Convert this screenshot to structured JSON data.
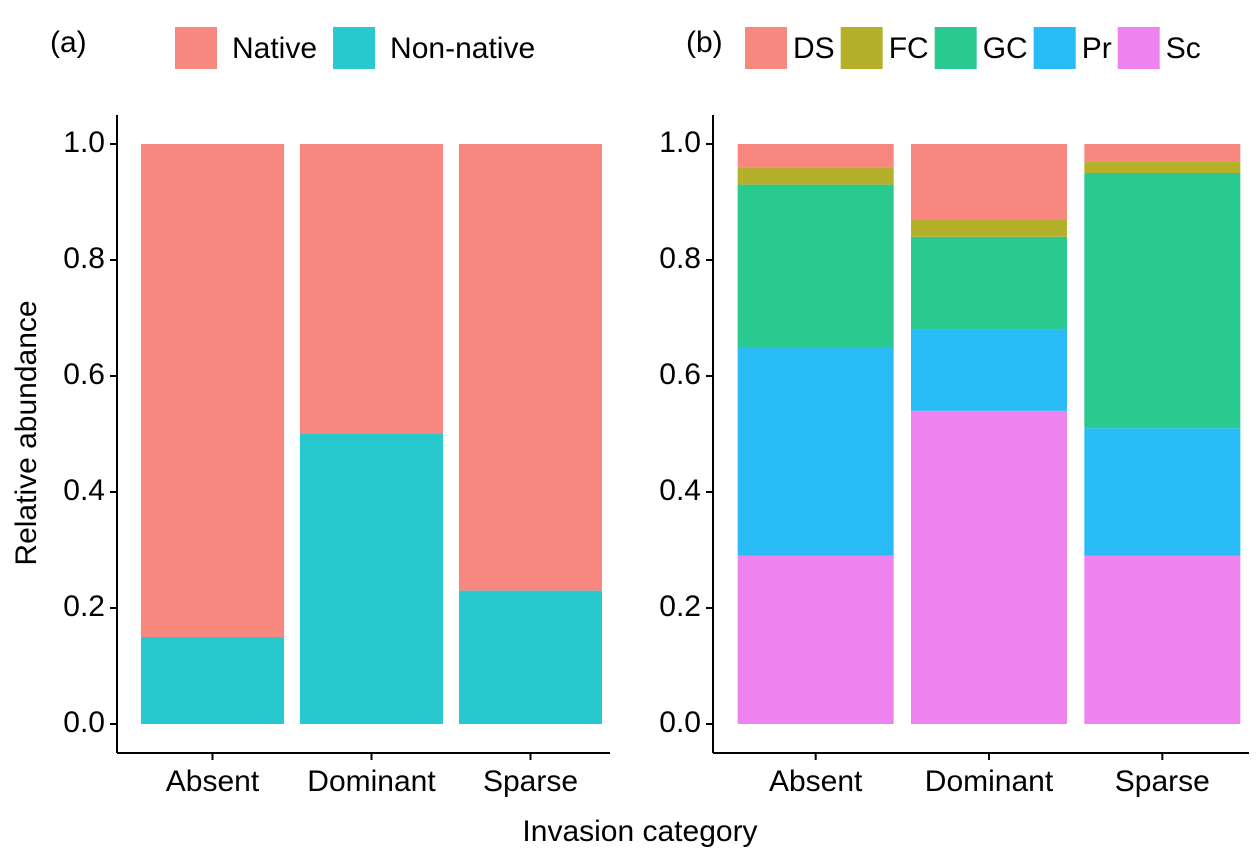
{
  "y_label": "Relative abundance",
  "x_label": "Invasion category",
  "chart_data": [
    {
      "type": "bar",
      "stacked": true,
      "panel_label": "(a)",
      "categories": [
        "Absent",
        "Dominant",
        "Sparse"
      ],
      "series": [
        {
          "name": "Native",
          "color": "#F8877F",
          "values": [
            0.85,
            0.5,
            0.77
          ]
        },
        {
          "name": "Non-native",
          "color": "#27C9CF",
          "values": [
            0.15,
            0.5,
            0.23
          ]
        }
      ],
      "ylim": [
        -0.05,
        1.05
      ],
      "yticks": [
        {
          "value": 0,
          "label": "0.0"
        },
        0.2,
        0.4,
        0.6,
        0.8,
        {
          "value": 1,
          "label": "1.0"
        }
      ]
    },
    {
      "type": "bar",
      "stacked": true,
      "panel_label": "(b)",
      "categories": [
        "Absent",
        "Dominant",
        "Sparse"
      ],
      "series": [
        {
          "name": "DS",
          "color": "#F8877F",
          "values": [
            0.04,
            0.13,
            0.03
          ]
        },
        {
          "name": "FC",
          "color": "#B4B02A",
          "values": [
            0.03,
            0.03,
            0.02
          ]
        },
        {
          "name": "GC",
          "color": "#2AC98F",
          "values": [
            0.28,
            0.16,
            0.44
          ]
        },
        {
          "name": "Pr",
          "color": "#28BBF5",
          "values": [
            0.36,
            0.14,
            0.22
          ]
        },
        {
          "name": "Sc",
          "color": "#EE82EE",
          "values": [
            0.29,
            0.54,
            0.29
          ]
        }
      ],
      "ylim": [
        -0.05,
        1.05
      ],
      "yticks": [
        {
          "value": 0,
          "label": "0.0"
        },
        0.2,
        0.4,
        0.6,
        0.8,
        {
          "value": 1,
          "label": "1.0"
        }
      ]
    }
  ]
}
